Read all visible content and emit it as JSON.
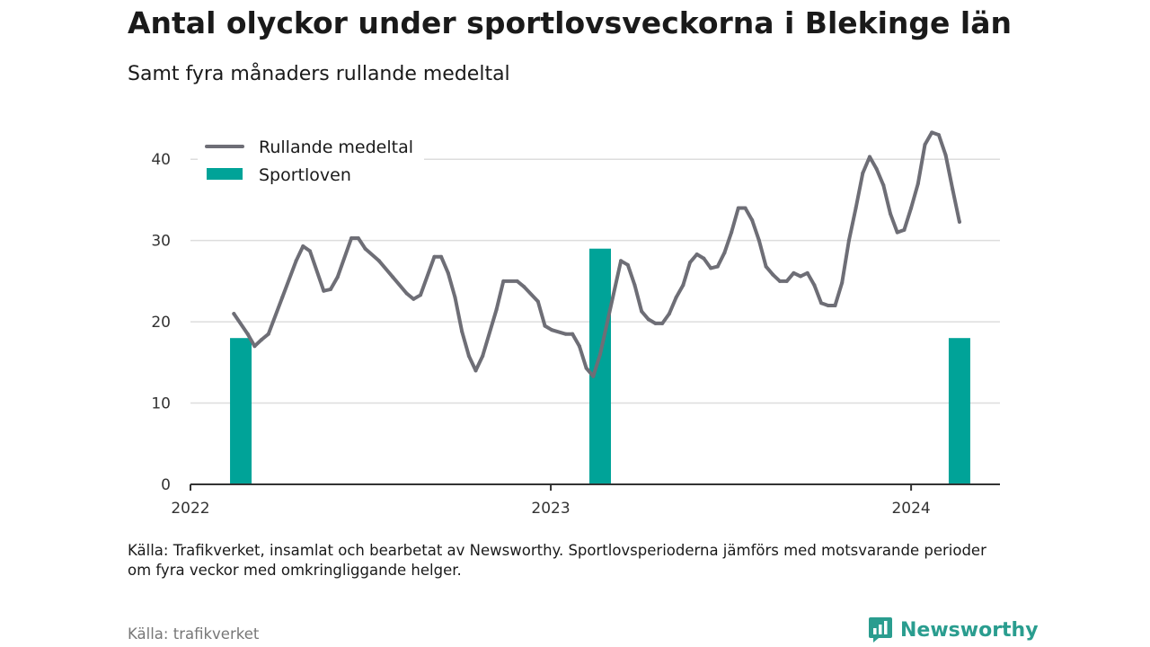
{
  "header": {
    "title": "Antal olyckor under sportlovsveckorna i Blekinge län",
    "subtitle": "Samt fyra månaders rullande medeltal"
  },
  "footer": {
    "note": "Källa: Trafikverket, insamlat och bearbetat av Newsworthy. Sportlovsperioderna jämförs med motsvarande perioder om fyra veckor med omkringliggande helger.",
    "source": "Källa: trafikverket",
    "brand": "Newsworthy",
    "brand_icon": "bar-chart-logo-icon"
  },
  "colors": {
    "line": "#6e6e76",
    "bar": "#00a398",
    "grid": "#dddddd",
    "axis": "#333333",
    "brand": "#2a9d8f"
  },
  "chart_data": {
    "type": "bar+line",
    "xlim": [
      "2022-01-01",
      "2024-03-31"
    ],
    "ylim": [
      0,
      45
    ],
    "yticks": [
      0,
      10,
      20,
      30,
      40
    ],
    "xticks": [
      {
        "date": "2022-01-01",
        "label": "2022"
      },
      {
        "date": "2023-01-01",
        "label": "2023"
      },
      {
        "date": "2024-01-01",
        "label": "2024"
      }
    ],
    "grid": true,
    "legend": {
      "position": "top-left",
      "entries": [
        {
          "label": "Rullande medeltal",
          "kind": "line"
        },
        {
          "label": "Sportloven",
          "kind": "bar"
        }
      ]
    },
    "bars": [
      {
        "date": "2022-02-21",
        "value": 18
      },
      {
        "date": "2023-02-20",
        "value": 29
      },
      {
        "date": "2024-02-19",
        "value": 18
      }
    ],
    "line": [
      {
        "date": "2022-02-14",
        "value": 21
      },
      {
        "date": "2022-02-28",
        "value": 18.5
      },
      {
        "date": "2022-03-07",
        "value": 17
      },
      {
        "date": "2022-03-14",
        "value": 17.8
      },
      {
        "date": "2022-03-21",
        "value": 18.5
      },
      {
        "date": "2022-04-04",
        "value": 23
      },
      {
        "date": "2022-04-18",
        "value": 27.5
      },
      {
        "date": "2022-04-25",
        "value": 29.3
      },
      {
        "date": "2022-05-02",
        "value": 28.7
      },
      {
        "date": "2022-05-16",
        "value": 23.8
      },
      {
        "date": "2022-05-23",
        "value": 24
      },
      {
        "date": "2022-05-30",
        "value": 25.5
      },
      {
        "date": "2022-06-13",
        "value": 30.3
      },
      {
        "date": "2022-06-20",
        "value": 30.3
      },
      {
        "date": "2022-06-27",
        "value": 29
      },
      {
        "date": "2022-07-11",
        "value": 27.5
      },
      {
        "date": "2022-07-25",
        "value": 25.5
      },
      {
        "date": "2022-08-08",
        "value": 23.5
      },
      {
        "date": "2022-08-15",
        "value": 22.8
      },
      {
        "date": "2022-08-22",
        "value": 23.3
      },
      {
        "date": "2022-09-05",
        "value": 28
      },
      {
        "date": "2022-09-12",
        "value": 28
      },
      {
        "date": "2022-09-19",
        "value": 26
      },
      {
        "date": "2022-09-26",
        "value": 23
      },
      {
        "date": "2022-10-03",
        "value": 18.8
      },
      {
        "date": "2022-10-10",
        "value": 15.8
      },
      {
        "date": "2022-10-17",
        "value": 14
      },
      {
        "date": "2022-10-24",
        "value": 15.8
      },
      {
        "date": "2022-11-07",
        "value": 21.5
      },
      {
        "date": "2022-11-14",
        "value": 25
      },
      {
        "date": "2022-11-28",
        "value": 25
      },
      {
        "date": "2022-12-05",
        "value": 24.3
      },
      {
        "date": "2022-12-19",
        "value": 22.5
      },
      {
        "date": "2022-12-26",
        "value": 19.5
      },
      {
        "date": "2023-01-02",
        "value": 19
      },
      {
        "date": "2023-01-16",
        "value": 18.5
      },
      {
        "date": "2023-01-23",
        "value": 18.5
      },
      {
        "date": "2023-01-30",
        "value": 17
      },
      {
        "date": "2023-02-06",
        "value": 14.3
      },
      {
        "date": "2023-02-13",
        "value": 13.3
      },
      {
        "date": "2023-02-20",
        "value": 16
      },
      {
        "date": "2023-03-13",
        "value": 27.5
      },
      {
        "date": "2023-03-20",
        "value": 27
      },
      {
        "date": "2023-03-27",
        "value": 24.5
      },
      {
        "date": "2023-04-03",
        "value": 21.3
      },
      {
        "date": "2023-04-10",
        "value": 20.3
      },
      {
        "date": "2023-04-17",
        "value": 19.8
      },
      {
        "date": "2023-04-24",
        "value": 19.8
      },
      {
        "date": "2023-05-01",
        "value": 21
      },
      {
        "date": "2023-05-08",
        "value": 23
      },
      {
        "date": "2023-05-15",
        "value": 24.5
      },
      {
        "date": "2023-05-22",
        "value": 27.3
      },
      {
        "date": "2023-05-29",
        "value": 28.3
      },
      {
        "date": "2023-06-05",
        "value": 27.8
      },
      {
        "date": "2023-06-12",
        "value": 26.6
      },
      {
        "date": "2023-06-19",
        "value": 26.8
      },
      {
        "date": "2023-06-26",
        "value": 28.5
      },
      {
        "date": "2023-07-03",
        "value": 31
      },
      {
        "date": "2023-07-10",
        "value": 34
      },
      {
        "date": "2023-07-17",
        "value": 34
      },
      {
        "date": "2023-07-24",
        "value": 32.5
      },
      {
        "date": "2023-07-31",
        "value": 30
      },
      {
        "date": "2023-08-07",
        "value": 26.8
      },
      {
        "date": "2023-08-14",
        "value": 25.8
      },
      {
        "date": "2023-08-21",
        "value": 25
      },
      {
        "date": "2023-08-28",
        "value": 25
      },
      {
        "date": "2023-09-04",
        "value": 26
      },
      {
        "date": "2023-09-11",
        "value": 25.6
      },
      {
        "date": "2023-09-18",
        "value": 26
      },
      {
        "date": "2023-09-25",
        "value": 24.5
      },
      {
        "date": "2023-10-02",
        "value": 22.3
      },
      {
        "date": "2023-10-09",
        "value": 22
      },
      {
        "date": "2023-10-16",
        "value": 22
      },
      {
        "date": "2023-10-23",
        "value": 24.8
      },
      {
        "date": "2023-10-30",
        "value": 30
      },
      {
        "date": "2023-11-06",
        "value": 34
      },
      {
        "date": "2023-11-13",
        "value": 38.3
      },
      {
        "date": "2023-11-20",
        "value": 40.3
      },
      {
        "date": "2023-11-27",
        "value": 38.8
      },
      {
        "date": "2023-12-04",
        "value": 36.8
      },
      {
        "date": "2023-12-11",
        "value": 33.3
      },
      {
        "date": "2023-12-18",
        "value": 31
      },
      {
        "date": "2023-12-25",
        "value": 31.3
      },
      {
        "date": "2024-01-01",
        "value": 34
      },
      {
        "date": "2024-01-08",
        "value": 37
      },
      {
        "date": "2024-01-15",
        "value": 41.8
      },
      {
        "date": "2024-01-22",
        "value": 43.3
      },
      {
        "date": "2024-01-29",
        "value": 43
      },
      {
        "date": "2024-02-05",
        "value": 40.5
      },
      {
        "date": "2024-02-12",
        "value": 36.3
      },
      {
        "date": "2024-02-19",
        "value": 32.3
      }
    ]
  }
}
